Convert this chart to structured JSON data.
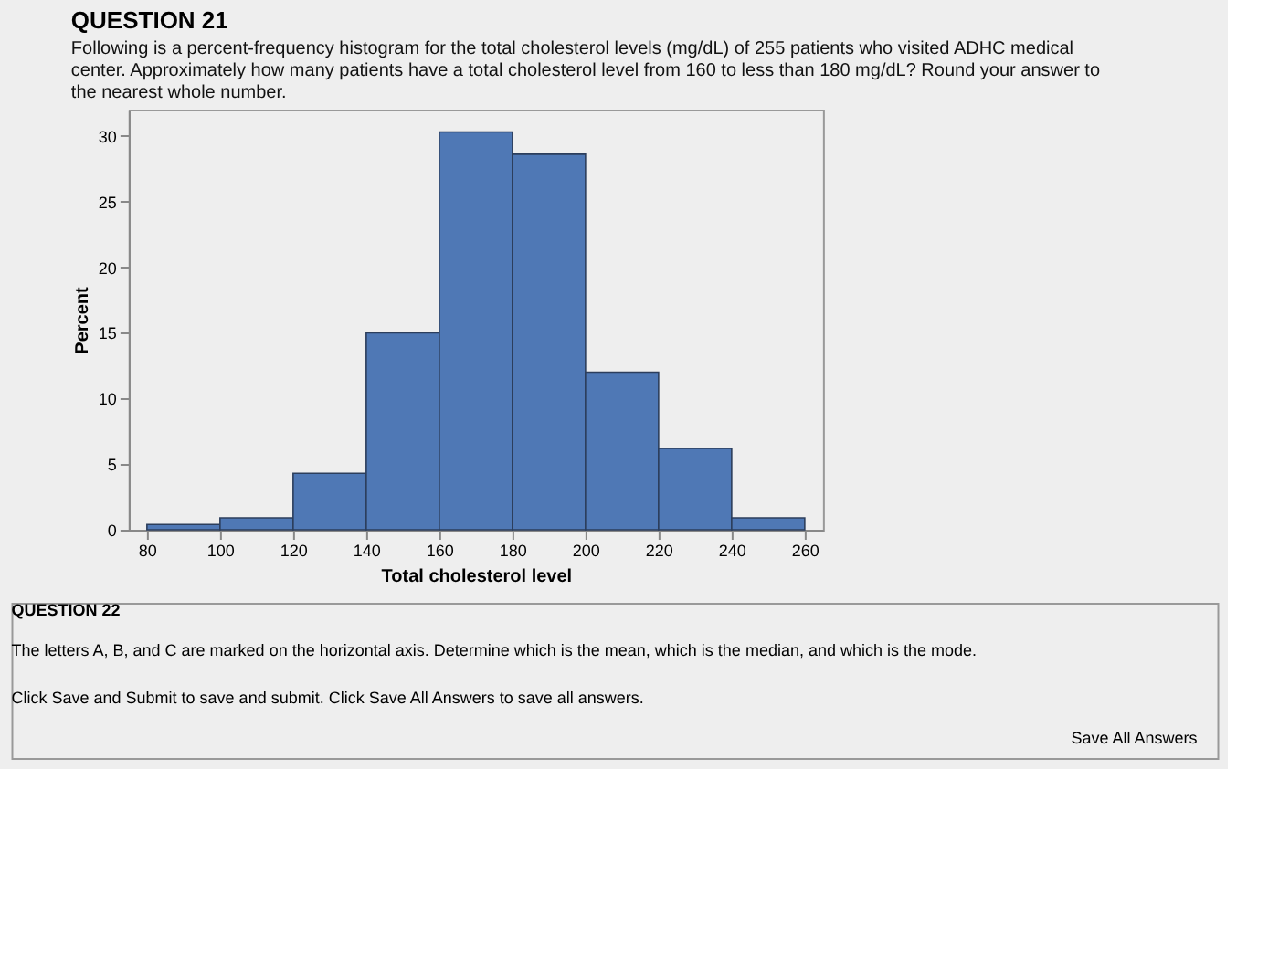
{
  "chart_data": {
    "type": "histogram",
    "title": "QUESTION 21",
    "subtitle": "Following is a percent-frequency histogram for the total cholesterol levels (mg/dL) of 255 patients who visited ADHC medical center. Approximately how many patients have a total cholesterol level from 160 to less than 180 mg/dL? Round your answer to the nearest whole number.",
    "xlabel": "Total cholesterol level",
    "ylabel": "Percent",
    "bins": [
      80,
      100,
      120,
      140,
      160,
      180,
      200,
      220,
      240,
      260
    ],
    "values": [
      0.4,
      0.9,
      4.3,
      15.0,
      30.3,
      28.6,
      12.0,
      6.2,
      0.9
    ],
    "color": "#4f78b5",
    "xlim": [
      75,
      265
    ],
    "xticks": [
      80,
      100,
      120,
      140,
      160,
      180,
      200,
      220,
      240,
      260
    ],
    "ylim": [
      0,
      32
    ],
    "yticks": [
      0,
      5,
      10,
      15,
      20,
      25,
      30
    ],
    "grid": false,
    "annotations": [
      "QUESTION 22",
      "The letters A, B, and C are marked on the horizontal axis. Determine which is the mean, which is the median, and which is the mode.",
      "Click Save and Submit to save and submit. Click Save All Answers to save all answers.",
      "Save All Answers"
    ]
  }
}
